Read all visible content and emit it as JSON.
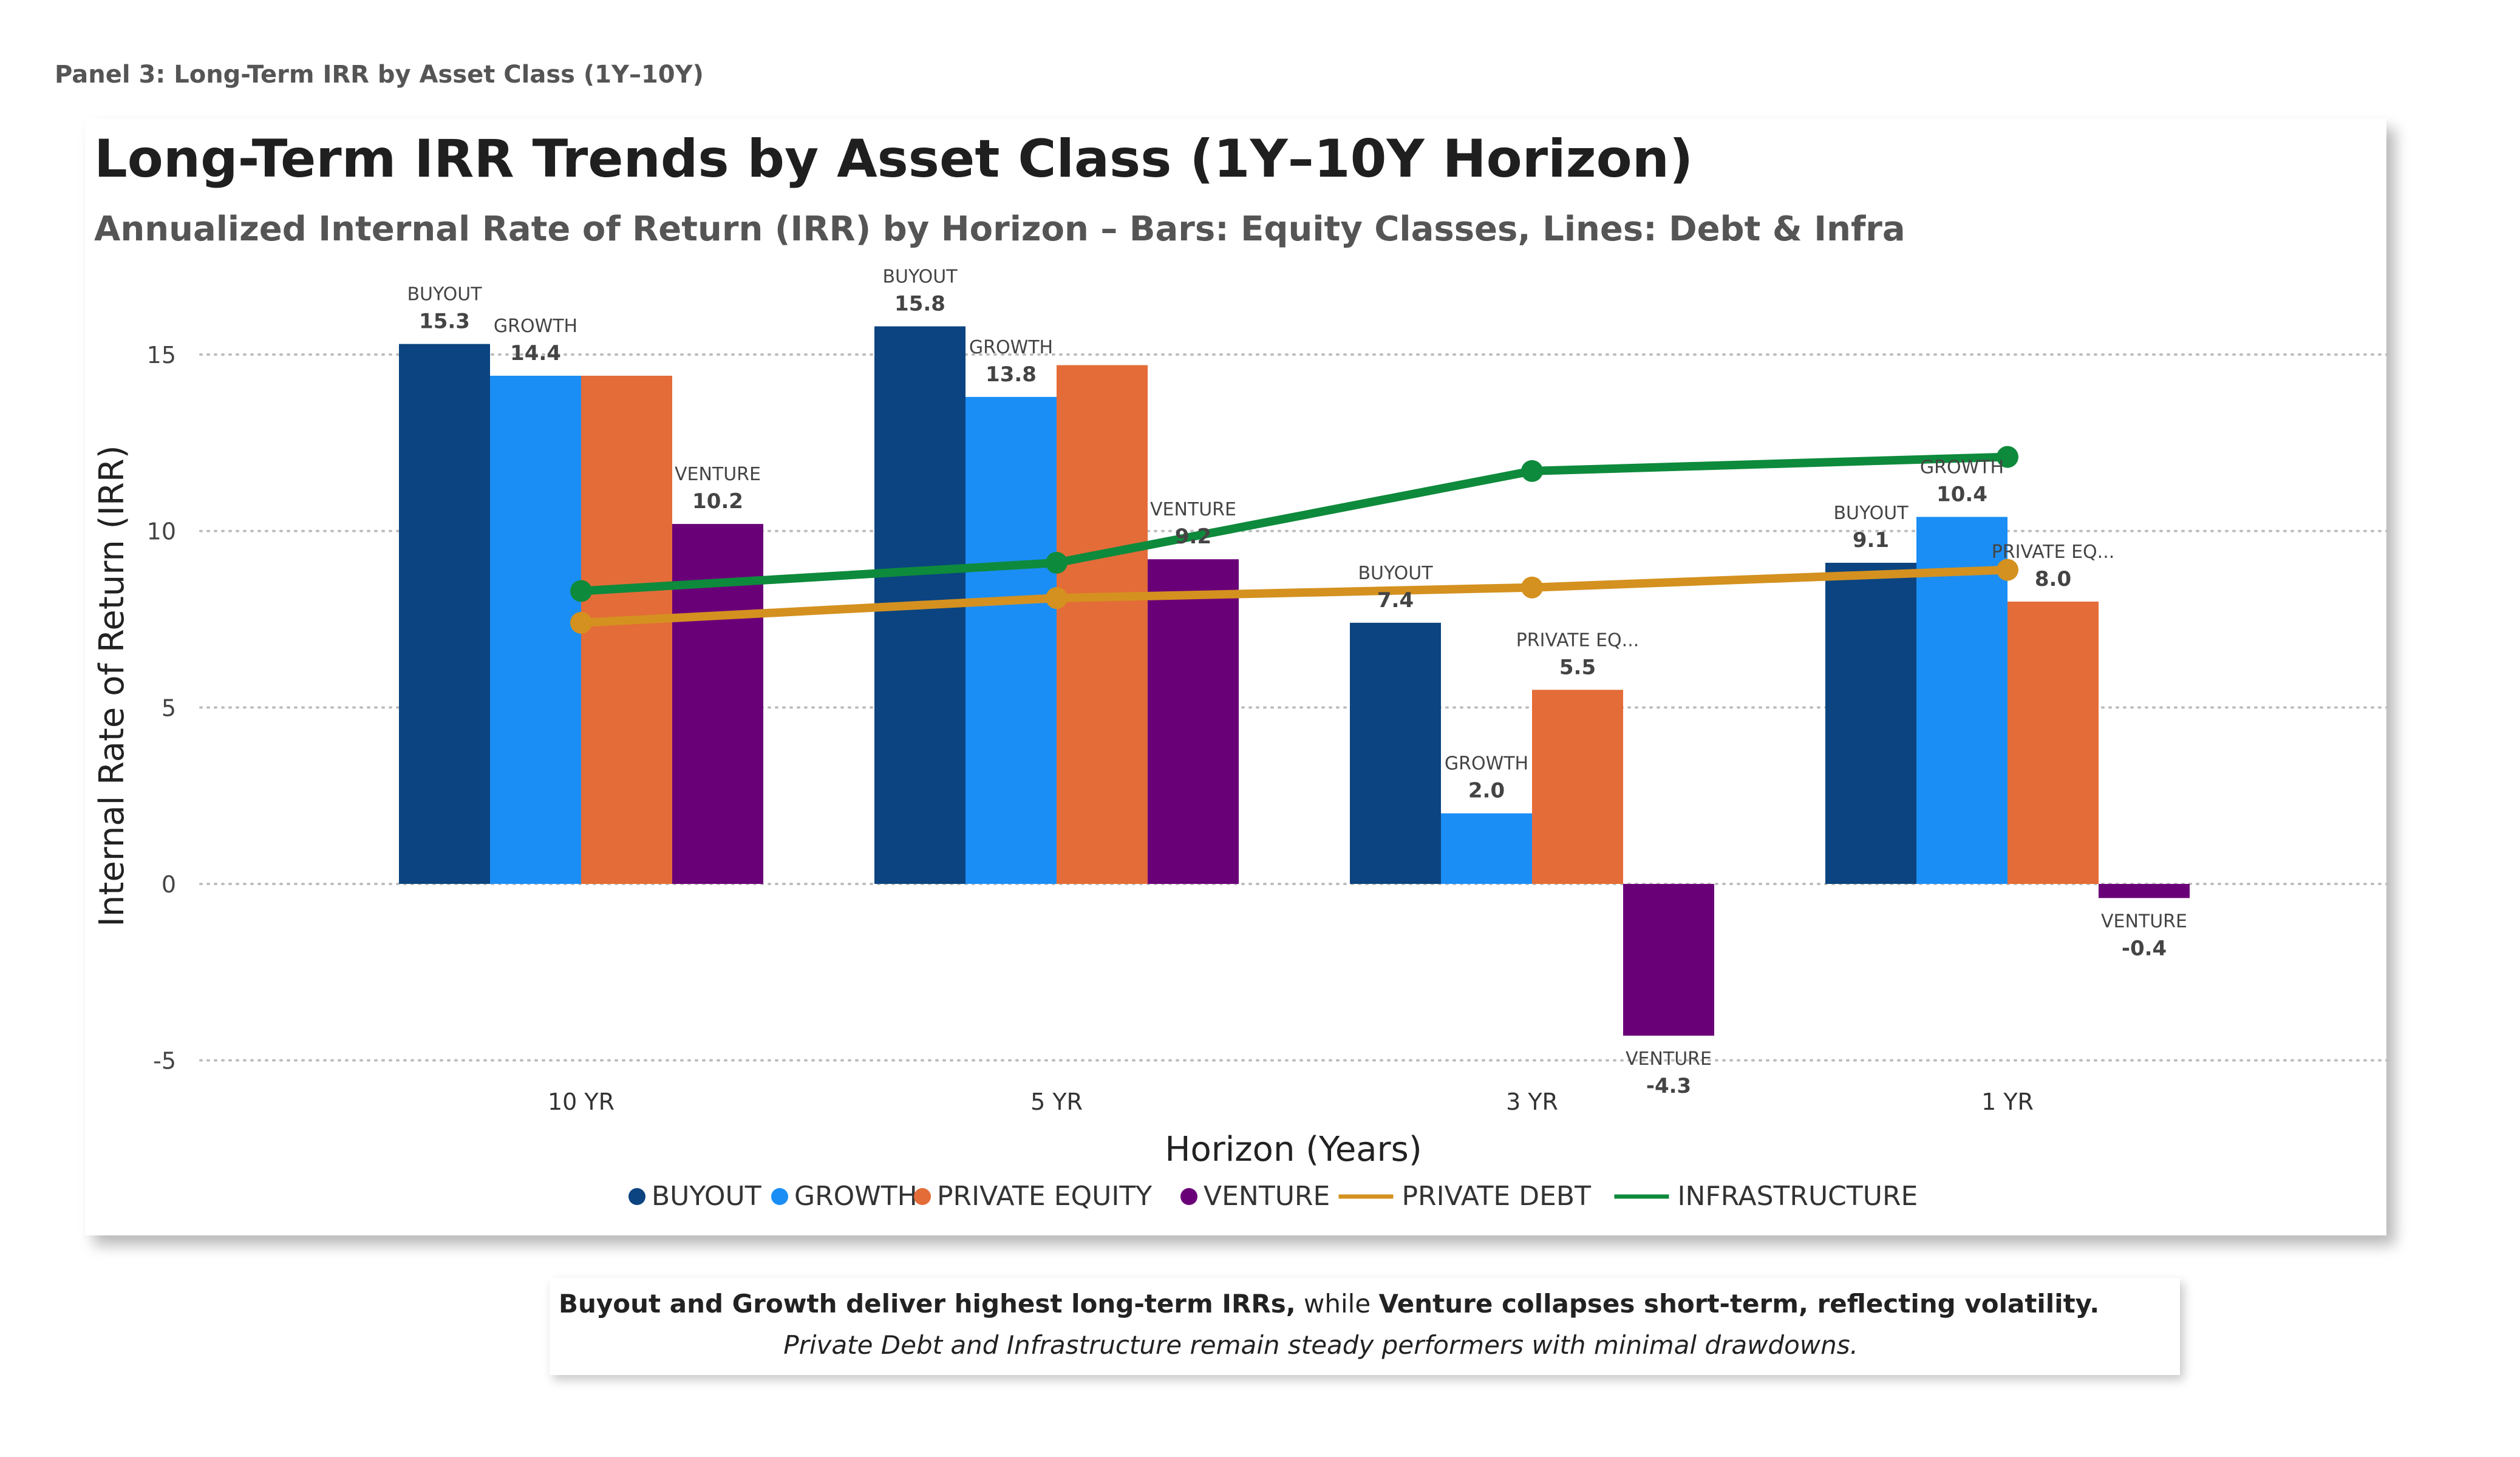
{
  "panel_label": "Panel 3: Long-Term IRR by Asset Class (1Y–10Y)",
  "chart_data": {
    "type": "bar",
    "title": "Long-Term IRR Trends by Asset Class (1Y–10Y Horizon)",
    "subtitle": "Annualized Internal Rate of Return (IRR) by Horizon – Bars: Equity Classes, Lines: Debt & Infra",
    "xlabel": "Horizon (Years)",
    "ylabel": "Internal Rate of Return (IRR)",
    "categories": [
      "10 YR",
      "5 YR",
      "3 YR",
      "1 YR"
    ],
    "ylim": [
      -6,
      17
    ],
    "yticks": [
      -5,
      0,
      5,
      10,
      15
    ],
    "grid": true,
    "legend_position": "bottom",
    "series": [
      {
        "name": "BUYOUT",
        "kind": "bar",
        "color": "#0B4480",
        "values": [
          15.3,
          15.8,
          7.4,
          9.1
        ],
        "labels": [
          "BUYOUT",
          "BUYOUT",
          "BUYOUT",
          "BUYOUT"
        ]
      },
      {
        "name": "GROWTH",
        "kind": "bar",
        "color": "#1B8EF5",
        "values": [
          14.4,
          13.8,
          2.0,
          10.4
        ],
        "labels": [
          "GROWTH",
          "GROWTH",
          "GROWTH",
          "GROWTH"
        ]
      },
      {
        "name": "PRIVATE EQUITY",
        "kind": "bar",
        "color": "#E46C38",
        "values": [
          14.4,
          14.7,
          5.5,
          8.0
        ],
        "labels": [
          "",
          "",
          "PRIVATE EQ...",
          "PRIVATE EQ..."
        ]
      },
      {
        "name": "VENTURE",
        "kind": "bar",
        "color": "#6A0078",
        "values": [
          10.2,
          9.2,
          -4.3,
          -0.4
        ],
        "labels": [
          "VENTURE",
          "VENTURE",
          "VENTURE",
          "VENTURE"
        ]
      },
      {
        "name": "PRIVATE DEBT",
        "kind": "line",
        "color": "#D4911F",
        "values": [
          7.4,
          8.1,
          8.4,
          8.9
        ]
      },
      {
        "name": "INFRASTRUCTURE",
        "kind": "line",
        "color": "#0E8A3C",
        "values": [
          8.3,
          9.1,
          11.7,
          12.1
        ]
      }
    ]
  },
  "note": {
    "bold1": "Buyout and Growth deliver highest long-term IRRs,",
    "plain1": " while ",
    "bold2": "Venture collapses short-term, reflecting volatility.",
    "italic": "Private Debt and Infrastructure remain steady performers with minimal drawdowns."
  }
}
